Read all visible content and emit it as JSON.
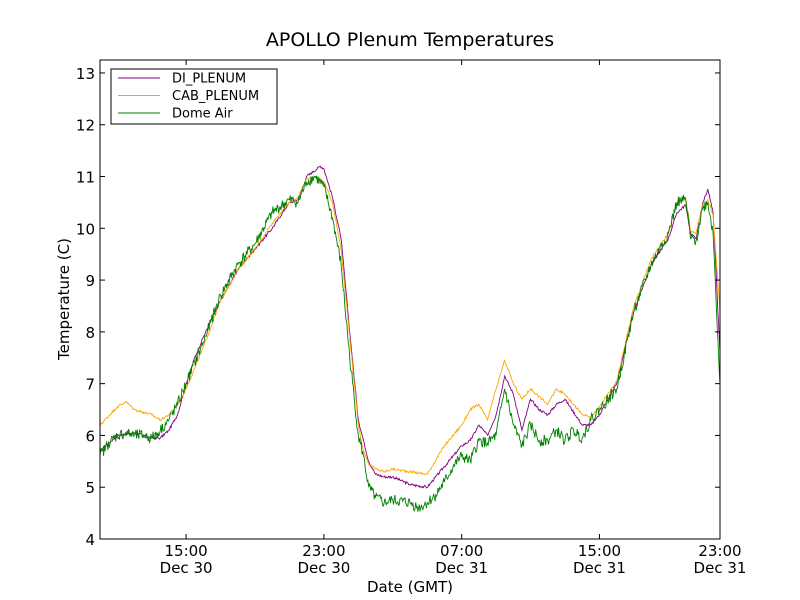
{
  "chart_data": {
    "type": "line",
    "title": "APOLLO Plenum Temperatures",
    "xlabel": "Date (GMT)",
    "ylabel": "Temperature (C)",
    "x_unit": "hours since Dec 30 10:00 GMT",
    "xlim": [
      0,
      36
    ],
    "ylim": [
      4,
      13.25
    ],
    "grid": false,
    "legend_position": "top-left",
    "y_ticks": [
      4,
      5,
      6,
      7,
      8,
      9,
      10,
      11,
      12,
      13
    ],
    "x_ticks": [
      {
        "x": 5,
        "time": "15:00",
        "date": "Dec 30"
      },
      {
        "x": 13,
        "time": "23:00",
        "date": "Dec 30"
      },
      {
        "x": 21,
        "time": "07:00",
        "date": "Dec 31"
      },
      {
        "x": 29,
        "time": "15:00",
        "date": "Dec 31"
      },
      {
        "x": 37,
        "time": "23:00",
        "date": "Dec 31"
      }
    ],
    "series": [
      {
        "name": "DI_PLENUM",
        "color": "#800080",
        "x": [
          0,
          1,
          2,
          2.5,
          3,
          3.5,
          4,
          4.5,
          5,
          5.5,
          6,
          7,
          8,
          9,
          10,
          11,
          11.5,
          12,
          12.4,
          12.8,
          13,
          13.5,
          14,
          14.5,
          15,
          15.3,
          15.6,
          16,
          16.5,
          17,
          18,
          19,
          20,
          21,
          21.5,
          22,
          22.5,
          23,
          23.5,
          24,
          24.5,
          25,
          25.5,
          26,
          26.5,
          27,
          28,
          28.5,
          29,
          30,
          31,
          32,
          33,
          33.5,
          34,
          34.3,
          34.6,
          35,
          35.3,
          35.6,
          36
        ],
        "values": [
          5.7,
          6.0,
          6.05,
          6.0,
          5.95,
          5.95,
          6.1,
          6.4,
          7.0,
          7.5,
          7.9,
          8.6,
          9.2,
          9.6,
          10.0,
          10.5,
          10.55,
          11.0,
          11.1,
          11.2,
          11.15,
          10.6,
          9.8,
          8.0,
          6.3,
          5.9,
          5.5,
          5.25,
          5.2,
          5.2,
          5.05,
          5.0,
          5.4,
          5.8,
          5.9,
          6.2,
          6.0,
          6.4,
          7.15,
          6.8,
          6.1,
          6.7,
          6.5,
          6.4,
          6.6,
          6.7,
          6.2,
          6.2,
          6.4,
          7.0,
          8.4,
          9.3,
          9.8,
          10.3,
          10.45,
          9.9,
          9.8,
          10.5,
          10.75,
          10.3,
          7.6
        ]
      },
      {
        "name": "CAB_PLENUM",
        "color": "#ffa500",
        "x": [
          0,
          1,
          1.5,
          2,
          2.5,
          3,
          3.5,
          4,
          4.5,
          5,
          6,
          7,
          8,
          9,
          10,
          11,
          11.5,
          12,
          12.5,
          13,
          13.5,
          14,
          14.5,
          15,
          15.3,
          15.6,
          16,
          16.5,
          17,
          18,
          19,
          20,
          21,
          21.5,
          22,
          22.5,
          23,
          23.5,
          24,
          24.5,
          25,
          25.5,
          26,
          26.5,
          27,
          28,
          28.5,
          29,
          30,
          31,
          32,
          33,
          33.5,
          34,
          34.3,
          34.6,
          35,
          35.3,
          35.6,
          36
        ],
        "values": [
          6.2,
          6.55,
          6.65,
          6.5,
          6.45,
          6.4,
          6.3,
          6.4,
          6.6,
          6.9,
          7.7,
          8.6,
          9.2,
          9.6,
          10.1,
          10.5,
          10.6,
          10.95,
          11.0,
          10.9,
          10.5,
          9.6,
          7.9,
          6.2,
          5.7,
          5.45,
          5.35,
          5.3,
          5.35,
          5.3,
          5.25,
          5.8,
          6.2,
          6.5,
          6.6,
          6.3,
          6.9,
          7.45,
          7.0,
          6.7,
          6.9,
          6.75,
          6.6,
          6.9,
          6.8,
          6.4,
          6.35,
          6.55,
          7.05,
          8.5,
          9.4,
          9.9,
          10.5,
          10.6,
          9.95,
          9.9,
          10.45,
          10.55,
          10.25,
          8.4
        ]
      },
      {
        "name": "Dome Air",
        "color": "#008000",
        "x": [
          0,
          0.5,
          1,
          1.5,
          2,
          2.5,
          3,
          3.5,
          4,
          4.5,
          5,
          6,
          7,
          8,
          9,
          10,
          11,
          11.5,
          12,
          12.5,
          13,
          13.5,
          14,
          14.5,
          15,
          15.3,
          15.6,
          16,
          16.5,
          17,
          18,
          18.5,
          19,
          19.5,
          20,
          20.5,
          21,
          21.5,
          22,
          22.5,
          23,
          23.5,
          24,
          24.5,
          25,
          25.5,
          26,
          26.5,
          27,
          27.5,
          28,
          28.5,
          29,
          30,
          31,
          32,
          33,
          33.5,
          34,
          34.3,
          34.6,
          35,
          35.3,
          35.6,
          36
        ],
        "values": [
          5.6,
          5.85,
          6.0,
          6.05,
          6.0,
          6.0,
          5.95,
          6.1,
          6.3,
          6.6,
          7.0,
          7.8,
          8.7,
          9.3,
          9.7,
          10.3,
          10.55,
          10.5,
          10.9,
          11.0,
          10.8,
          10.2,
          9.3,
          7.5,
          6.0,
          5.6,
          5.0,
          4.8,
          4.7,
          4.75,
          4.7,
          4.6,
          4.7,
          4.85,
          5.1,
          5.4,
          5.6,
          5.5,
          5.9,
          5.85,
          6.0,
          6.9,
          6.2,
          5.8,
          6.2,
          5.9,
          5.9,
          6.1,
          5.9,
          6.1,
          5.95,
          6.3,
          6.5,
          6.9,
          8.4,
          9.3,
          9.9,
          10.5,
          10.55,
          9.8,
          9.75,
          10.4,
          10.5,
          9.9,
          7.0
        ]
      }
    ]
  }
}
